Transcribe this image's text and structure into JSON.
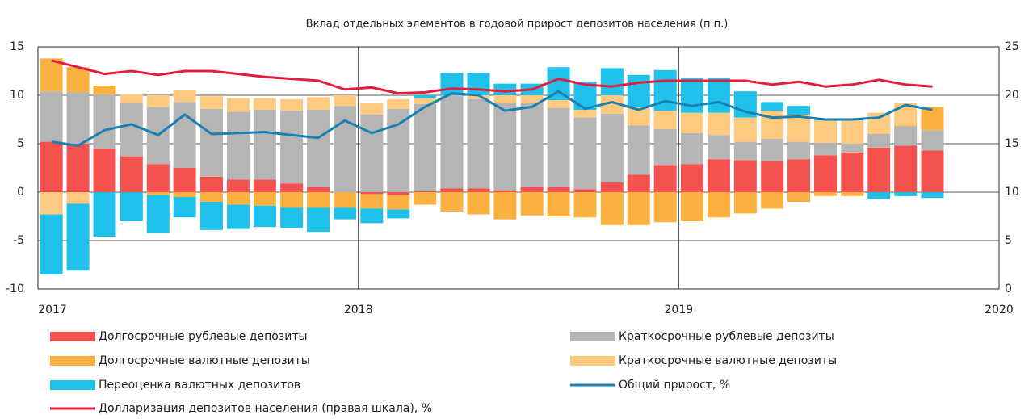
{
  "chart_data": {
    "type": "bar",
    "stacked": true,
    "title": "Вклад отдельных элементов в годовой прирост депозитов населения (п.п.)",
    "x": [
      2017.042,
      2017.125,
      2017.208,
      2017.292,
      2017.375,
      2017.458,
      2017.542,
      2017.625,
      2017.708,
      2017.792,
      2017.875,
      2017.958,
      2018.042,
      2018.125,
      2018.208,
      2018.292,
      2018.375,
      2018.458,
      2018.542,
      2018.625,
      2018.708,
      2018.792,
      2018.875,
      2018.958,
      2019.042,
      2019.125,
      2019.208,
      2019.292,
      2019.375,
      2019.458,
      2019.542,
      2019.625,
      2019.708,
      2019.792
    ],
    "xlim": [
      2017,
      2020
    ],
    "xticks": [
      2017,
      2018,
      2019,
      2020
    ],
    "ylim": [
      -10,
      15
    ],
    "yticks": [
      -10,
      -5,
      0,
      5,
      10,
      15
    ],
    "y2lim": [
      0,
      25
    ],
    "y2ticks": [
      0,
      5,
      10,
      15,
      20,
      25
    ],
    "grid": true,
    "series": [
      {
        "name": "Долгосрочные рублевые депозиты",
        "color": "#f4524f",
        "values": [
          5.2,
          5.0,
          4.5,
          3.7,
          2.9,
          2.5,
          1.6,
          1.3,
          1.3,
          0.9,
          0.5,
          0,
          -0.2,
          -0.3,
          0.1,
          0.4,
          0.4,
          0.2,
          0.5,
          0.5,
          0.3,
          1.0,
          1.8,
          2.8,
          2.9,
          3.4,
          3.3,
          3.2,
          3.4,
          3.8,
          4.1,
          4.6,
          4.8,
          4.3
        ]
      },
      {
        "name": "Краткосрочные рублевые депозиты",
        "color": "#b5b5b5",
        "values": [
          5.2,
          5.3,
          5.6,
          5.5,
          5.9,
          6.8,
          7.0,
          7.0,
          7.2,
          7.5,
          8.0,
          8.9,
          8.0,
          8.6,
          9.0,
          9.6,
          9.2,
          9.0,
          8.7,
          8.2,
          7.4,
          7.1,
          5.1,
          3.7,
          3.2,
          2.5,
          1.9,
          2.3,
          1.8,
          1.3,
          0.9,
          1.4,
          2.0,
          2.1
        ]
      },
      {
        "name": "Долгосрочные валютные депозиты",
        "color": "#fbb13f",
        "values": [
          3.4,
          2.6,
          0.9,
          0,
          -0.3,
          -0.5,
          -1.0,
          -1.3,
          -1.4,
          -1.6,
          -1.6,
          -1.6,
          -1.5,
          -1.5,
          -1.3,
          -2.0,
          -2.3,
          -2.8,
          -2.4,
          -2.5,
          -2.6,
          -3.4,
          -3.4,
          -3.1,
          -3.0,
          -2.6,
          -2.2,
          -1.7,
          -1.0,
          -0.4,
          -0.4,
          0,
          0.1,
          2.4
        ]
      },
      {
        "name": "Краткосрочные валютные депозиты",
        "color": "#fdca80",
        "values": [
          -2.3,
          -1.2,
          0,
          0.9,
          1.2,
          1.2,
          1.3,
          1.4,
          1.2,
          1.2,
          1.3,
          1.1,
          1.2,
          1.0,
          0.6,
          0,
          0.4,
          0.8,
          0.8,
          0.8,
          0.8,
          1.9,
          1.9,
          1.9,
          2.1,
          2.3,
          2.5,
          2.9,
          2.8,
          2.3,
          2.4,
          2.2,
          2.3,
          0
        ]
      },
      {
        "name": "Переоценка валютных депозитов",
        "color": "#1fc0e9",
        "values": [
          -6.2,
          -6.9,
          -4.6,
          -3.0,
          -3.9,
          -2.1,
          -2.9,
          -2.5,
          -2.2,
          -2.1,
          -2.5,
          -1.2,
          -1.5,
          -0.9,
          0.3,
          2.3,
          2.3,
          1.2,
          1.2,
          3.4,
          2.9,
          2.8,
          3.3,
          4.2,
          3.6,
          3.6,
          2.7,
          0.9,
          0.9,
          0.2,
          0.2,
          -0.7,
          -0.4,
          -0.6
        ]
      },
      {
        "name": "Общий прирост, %",
        "type": "line",
        "color": "#1a80b3",
        "values": [
          5.2,
          4.8,
          6.4,
          7.0,
          5.9,
          8.0,
          6.0,
          6.1,
          6.2,
          5.9,
          5.6,
          7.4,
          6.1,
          7.0,
          8.8,
          10.2,
          10.0,
          8.4,
          8.8,
          10.4,
          8.6,
          9.3,
          8.5,
          9.4,
          8.9,
          9.3,
          8.3,
          7.7,
          7.8,
          7.5,
          7.5,
          7.7,
          9.0,
          8.5
        ]
      },
      {
        "name": "Долларизация депозитов населения (правая шкала), %",
        "type": "line",
        "axis": "y2",
        "color": "#e31e3d",
        "values": [
          23.6,
          22.9,
          22.2,
          22.5,
          22.1,
          22.5,
          22.5,
          22.2,
          21.9,
          21.7,
          21.5,
          20.6,
          20.8,
          20.2,
          20.3,
          20.7,
          20.6,
          20.4,
          20.6,
          21.7,
          21.1,
          20.9,
          21.3,
          21.5,
          21.5,
          21.5,
          21.5,
          21.1,
          21.4,
          20.9,
          21.1,
          21.6,
          21.1,
          20.9
        ]
      }
    ]
  }
}
